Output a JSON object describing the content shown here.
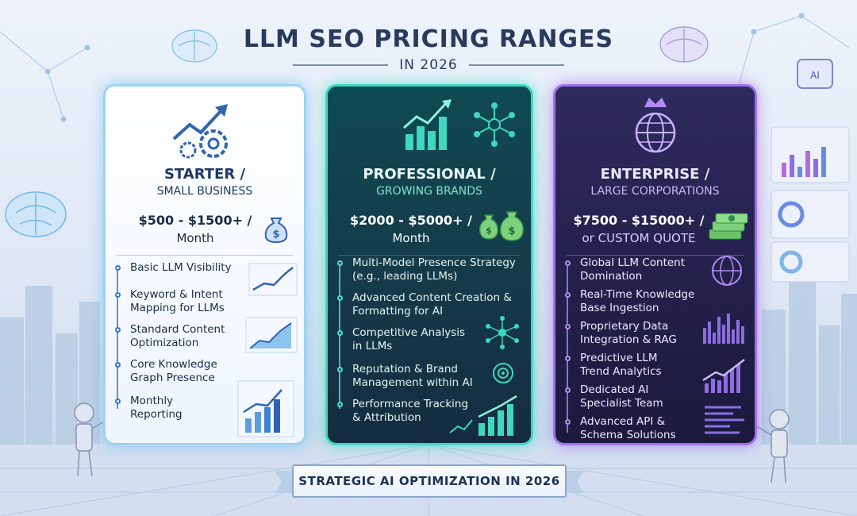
{
  "header": {
    "title": "LLM SEO PRICING RANGES",
    "subtitle": "IN 2026"
  },
  "tiers": [
    {
      "name": "STARTER /",
      "subtitle": "SMALL BUSINESS",
      "price": "$500 - $1500+ /",
      "period": "Month",
      "accent": "#9cd3f3",
      "icons": [
        "trend-gears-icon",
        "money-bag-icon"
      ],
      "features": [
        "Basic LLM Visibility",
        "Keyword & Intent Mapping for LLMs",
        "Standard Content Optimization",
        "Core Knowledge Graph Presence",
        "Monthly Reporting"
      ]
    },
    {
      "name": "PROFESSIONAL /",
      "subtitle": "GROWING BRANDS",
      "price": "$2000 - $5000+ /",
      "period": "Month",
      "accent": "#3fd7c0",
      "icons": [
        "bar-chart-icon",
        "network-icon",
        "money-bags-icon"
      ],
      "features": [
        "Multi-Model Presence Strategy (e.g., leading LLMs)",
        "Advanced Content Creation & Formatting for AI",
        "Competitive Analysis in LLMs",
        "Reputation & Brand Management within AI",
        "Performance Tracking & Attribution"
      ]
    },
    {
      "name": "ENTERPRISE /",
      "subtitle": "LARGE CORPORATIONS",
      "price": "$7500 - $15000+ /",
      "period": "or CUSTOM QUOTE",
      "accent": "#a070ea",
      "icons": [
        "crown-globe-icon",
        "money-stack-icon"
      ],
      "features": [
        "Global LLM Content Domination",
        "Real-Time Knowledge Base Ingestion",
        "Proprietary Data Integration & RAG",
        "Predictive LLM Trend Analytics",
        "Dedicated AI Specialist Team",
        "Advanced API & Schema Solutions"
      ]
    }
  ],
  "chip_label": "AI",
  "footer": {
    "banner": "STRATEGIC AI OPTIMIZATION IN 2026"
  },
  "colors": {
    "background": "#eef3fa",
    "title": "#2a3a5e",
    "starter": "#9cd3f3",
    "professional": "#3fd7c0",
    "enterprise": "#a070ea"
  }
}
